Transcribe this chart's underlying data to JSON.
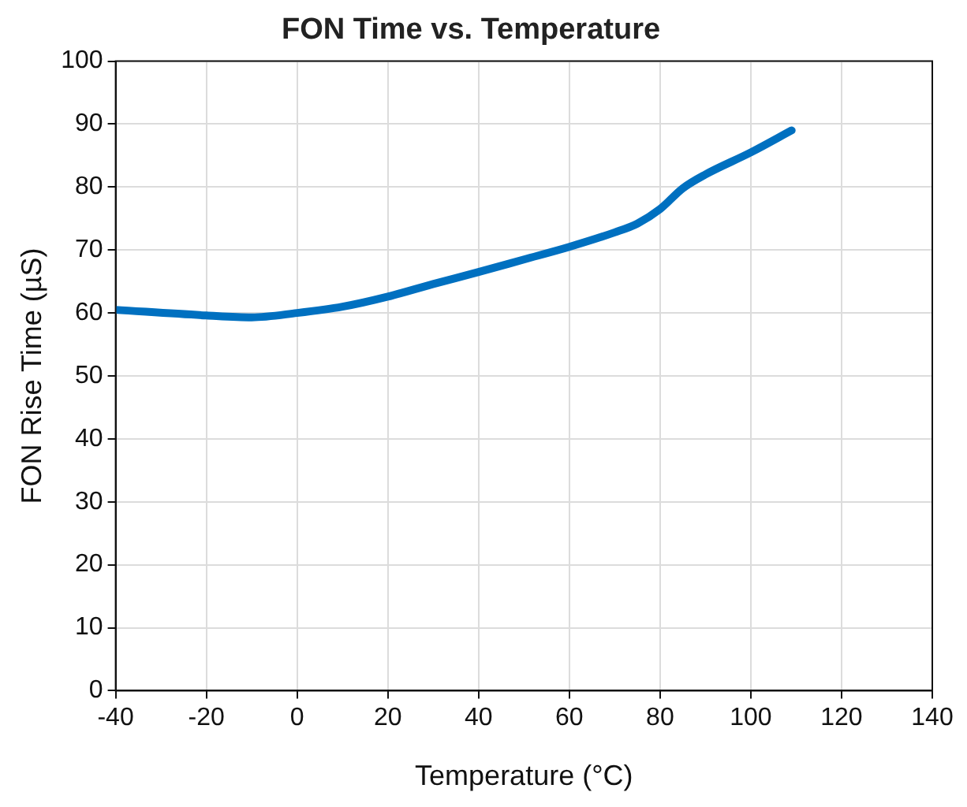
{
  "chart_data": {
    "type": "line",
    "title": "FON Time vs. Temperature",
    "xlabel": "Temperature (°C)",
    "ylabel": "FON Rise Time (µS)",
    "x": [
      -40,
      -20,
      -10,
      0,
      10,
      20,
      30,
      40,
      50,
      60,
      70,
      75,
      80,
      85,
      90,
      100,
      109
    ],
    "series": [
      {
        "color": "#0070c0",
        "values": [
          60.5,
          59.6,
          59.3,
          60,
          61,
          62.6,
          64.6,
          66.5,
          68.5,
          70.5,
          72.8,
          74.2,
          76.5,
          79.8,
          82,
          85.5,
          89
        ]
      }
    ],
    "xlim": [
      -40,
      140
    ],
    "xticks": [
      -40,
      -20,
      0,
      20,
      40,
      60,
      80,
      100,
      120,
      140
    ],
    "ylim": [
      0,
      100
    ],
    "yticks": [
      0,
      10,
      20,
      30,
      40,
      50,
      60,
      70,
      80,
      90,
      100
    ],
    "grid": true,
    "legend": false,
    "marker": "none",
    "line_style": "solid"
  }
}
